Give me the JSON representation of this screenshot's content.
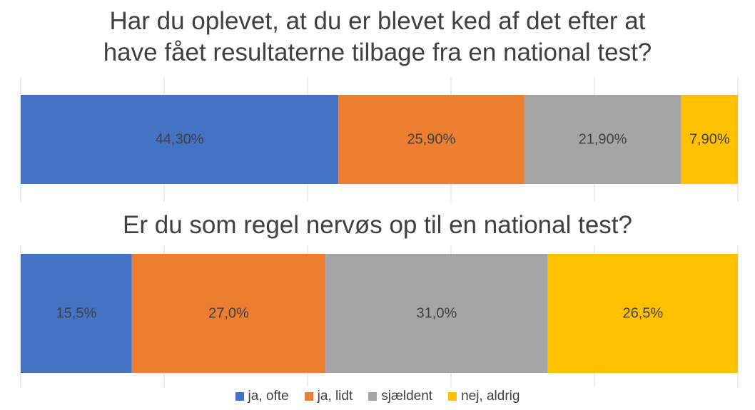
{
  "chart_data": [
    {
      "type": "bar",
      "orientation": "horizontal",
      "stacked": "100%",
      "title_lines": [
        "Har du oplevet, at du er blevet ked af det efter at",
        "have fået resultaterne tilbage fra en national test?"
      ],
      "series": [
        {
          "name": "ja, ofte",
          "value": 44.3,
          "label": "44,30%"
        },
        {
          "name": "ja, lidt",
          "value": 25.9,
          "label": "25,90%"
        },
        {
          "name": "sjældent",
          "value": 21.9,
          "label": "21,90%"
        },
        {
          "name": "nej, aldrig",
          "value": 7.9,
          "label": "7,90%"
        }
      ]
    },
    {
      "type": "bar",
      "orientation": "horizontal",
      "stacked": "100%",
      "title": "Er du som regel nervøs op til en national test?",
      "series": [
        {
          "name": "ja, ofte",
          "value": 15.5,
          "label": "15,5%"
        },
        {
          "name": "ja, lidt",
          "value": 27.0,
          "label": "27,0%"
        },
        {
          "name": "sjældent",
          "value": 31.0,
          "label": "31,0%"
        },
        {
          "name": "nej, aldrig",
          "value": 26.5,
          "label": "26,5%"
        }
      ]
    }
  ],
  "legend": [
    {
      "label": "ja, ofte",
      "color": "#4472C4"
    },
    {
      "label": "ja, lidt",
      "color": "#ED7D31"
    },
    {
      "label": "sjældent",
      "color": "#A5A5A5"
    },
    {
      "label": "nej, aldrig",
      "color": "#FFC000"
    }
  ]
}
